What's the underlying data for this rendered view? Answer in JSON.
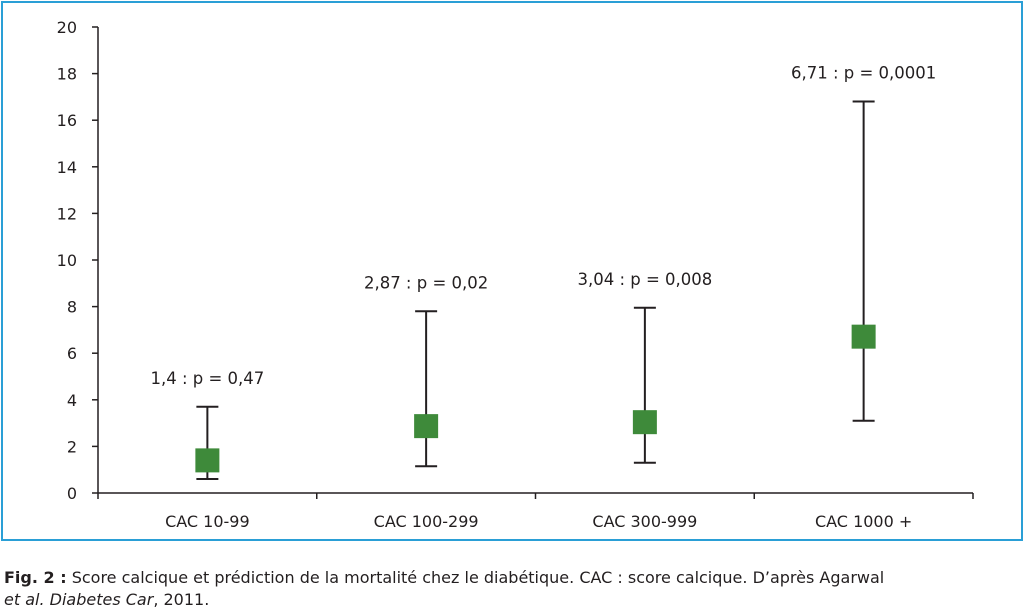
{
  "chart_data": {
    "type": "scatter",
    "categories": [
      "CAC 10-99",
      "CAC 100-299",
      "CAC 300-999",
      "CAC 1000 +"
    ],
    "values": [
      1.4,
      2.87,
      3.04,
      6.71
    ],
    "ci_low": [
      0.6,
      1.15,
      1.3,
      3.1
    ],
    "ci_high": [
      3.7,
      7.8,
      7.95,
      16.8
    ],
    "data_labels": [
      "1,4 : p = 0,47",
      "2,87 : p = 0,02",
      "3,04 : p = 0,008",
      "6,71 : p = 0,0001"
    ],
    "yticks": [
      "0",
      "2",
      "4",
      "6",
      "8",
      "10",
      "12",
      "14",
      "16",
      "18",
      "20"
    ],
    "ylim": [
      0,
      20
    ],
    "marker": "square",
    "marker_color": "#3e8a3a",
    "errorbar_color": "#231f20",
    "grid": false,
    "xlabel": "",
    "ylabel": ""
  },
  "frame_color": "#2a9fd6",
  "caption": {
    "label": "Fig. 2 :",
    "text": " Score calcique et prédiction de la mortalité chez le diabétique. CAC : score calcique. D’après Agarwal",
    "line2_italic_a": "et al.",
    "line2_sep": " ",
    "line2_italic_b": "Diabetes Car",
    "line2_rest": ", 2011."
  }
}
